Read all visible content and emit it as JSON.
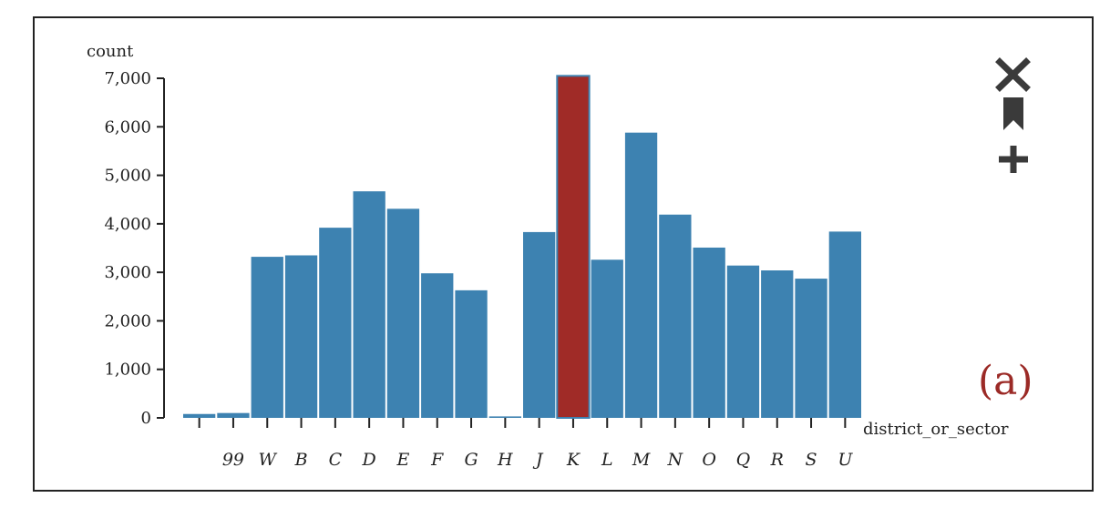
{
  "chart_data": {
    "type": "bar",
    "ylabel": "count",
    "xlabel": "district_or_sector",
    "categories": [
      "",
      "99",
      "W",
      "B",
      "C",
      "D",
      "E",
      "F",
      "G",
      "H",
      "J",
      "K",
      "L",
      "M",
      "N",
      "O",
      "Q",
      "R",
      "S",
      "U"
    ],
    "values": [
      80,
      100,
      3320,
      3350,
      3920,
      4670,
      4310,
      2980,
      2630,
      30,
      3830,
      7050,
      3260,
      5880,
      4190,
      3510,
      3140,
      3040,
      2870,
      3840
    ],
    "ylim": [
      0,
      7000
    ],
    "yticks": [
      "0",
      "1,000",
      "2,000",
      "3,000",
      "4,000",
      "5,000",
      "6,000",
      "7,000"
    ],
    "highlight_category": "K",
    "colors": {
      "bar": "#3d82b1",
      "highlight": "#a02b27"
    },
    "grid": false
  },
  "panel_label": "(a)",
  "controls": [
    {
      "name": "close-icon",
      "label": "Close"
    },
    {
      "name": "bookmark-icon",
      "label": "Bookmark"
    },
    {
      "name": "add-icon",
      "label": "Add"
    }
  ]
}
